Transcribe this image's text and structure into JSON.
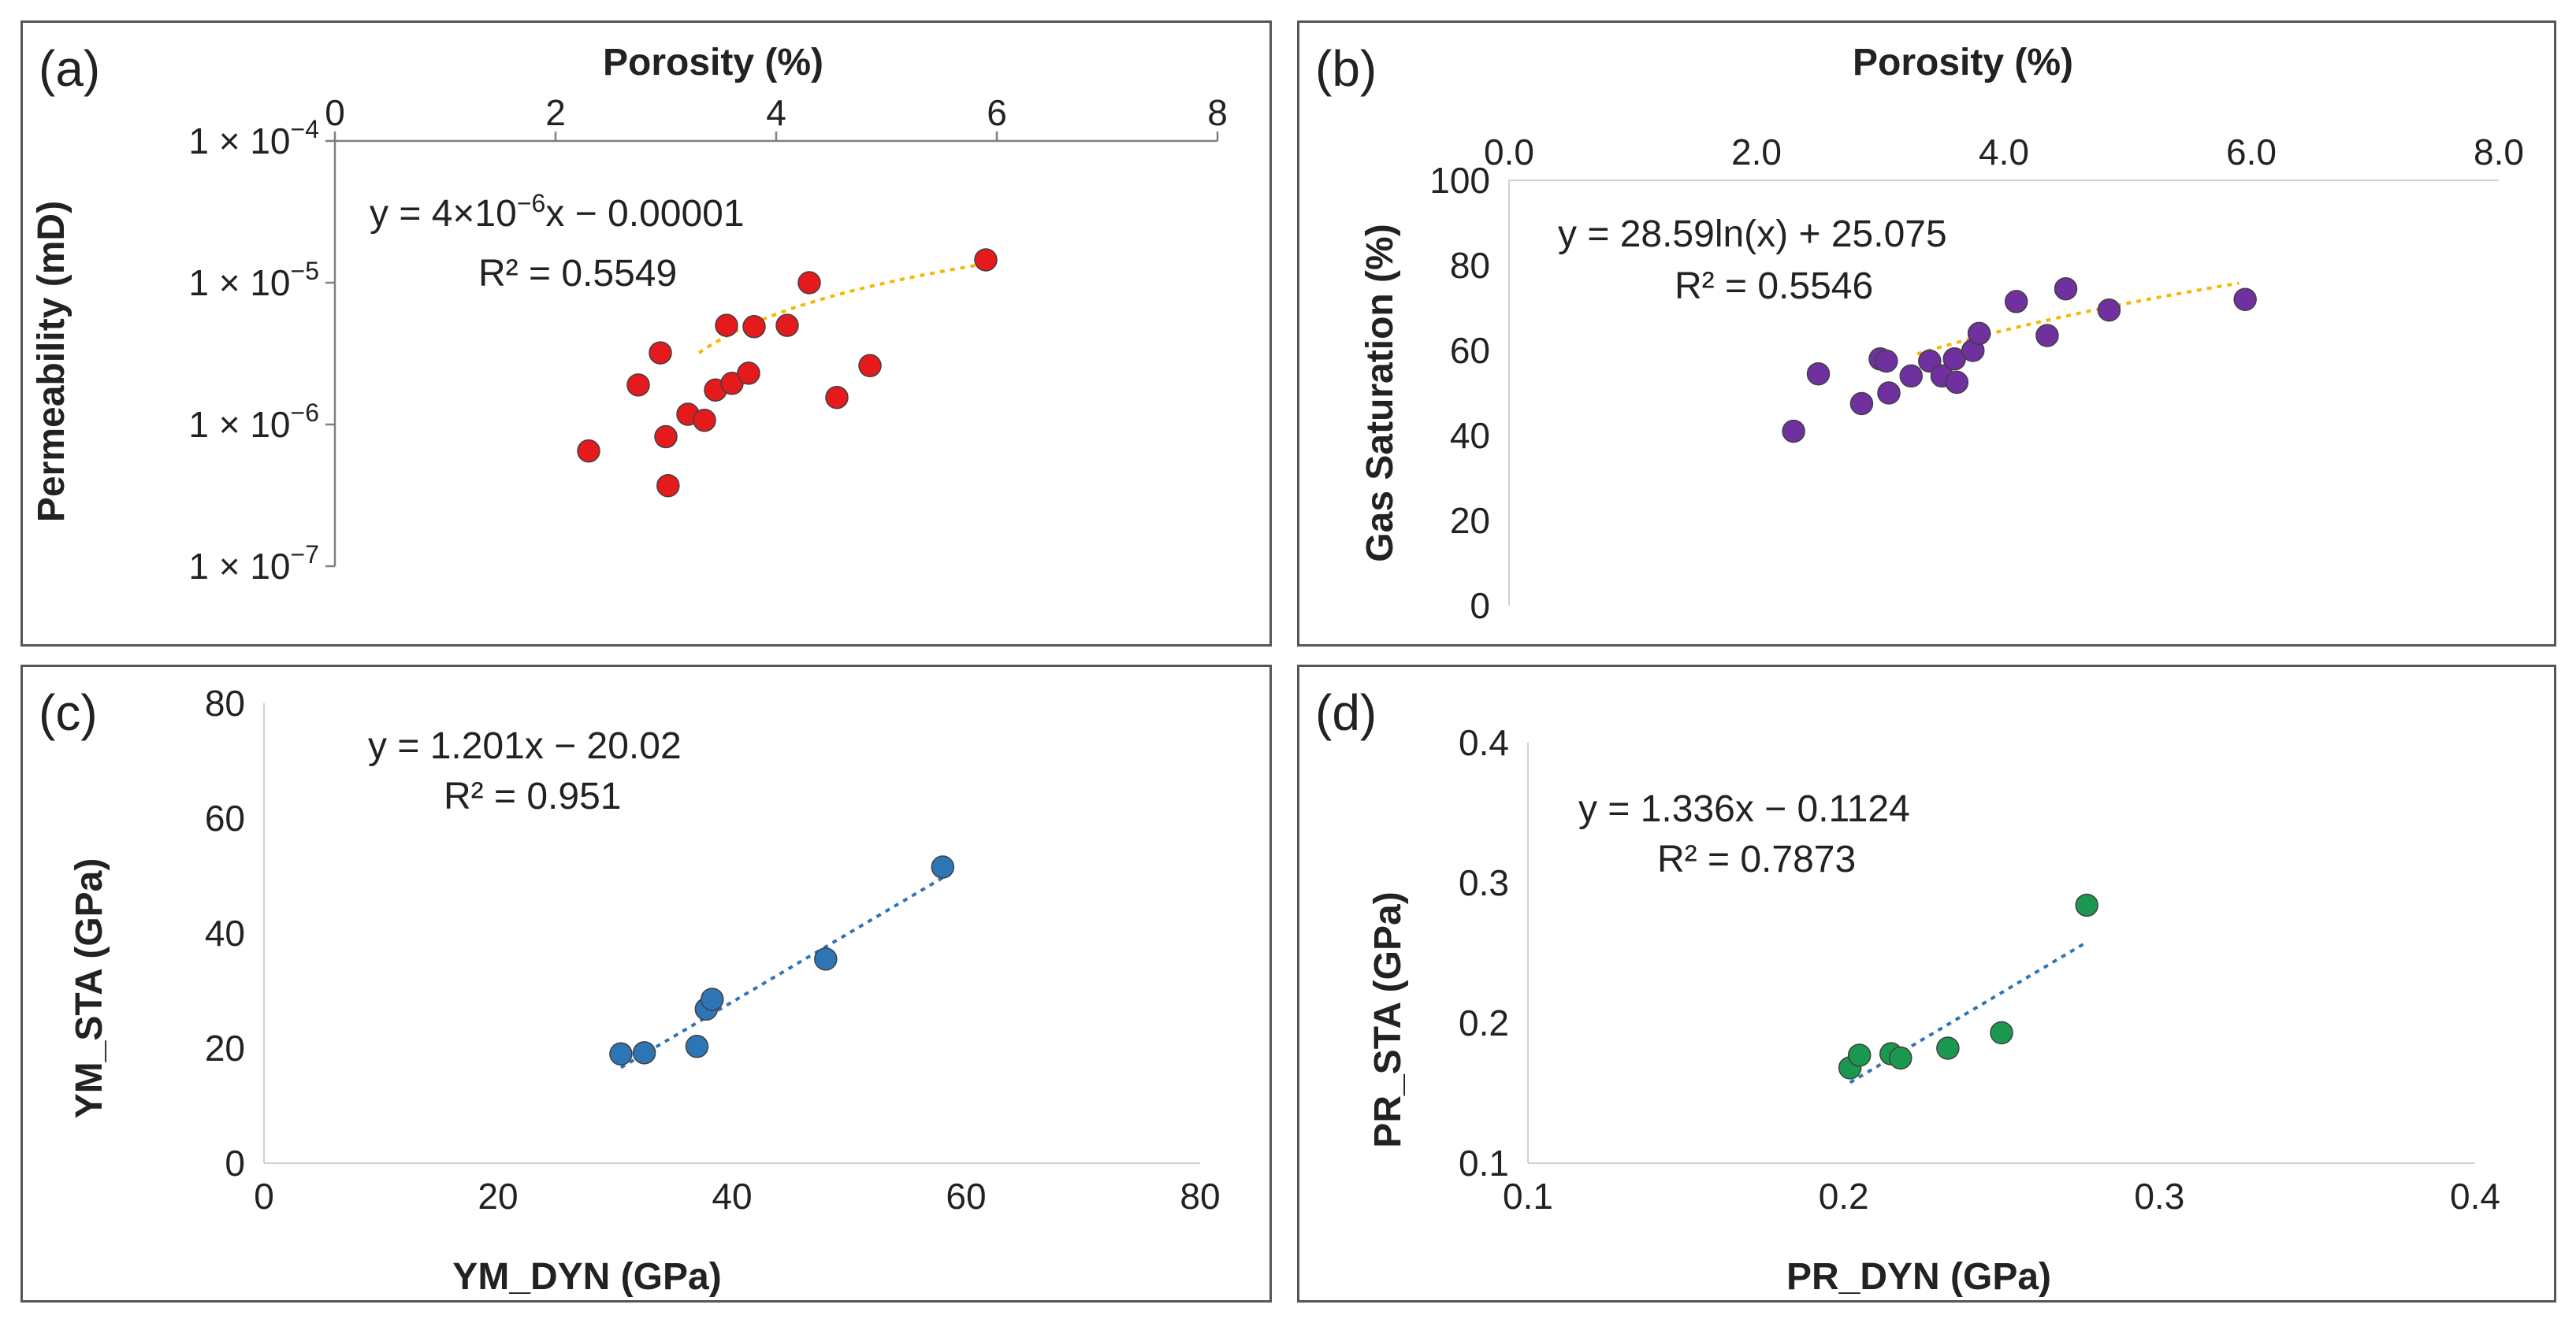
{
  "chart_data": [
    {
      "panel": "(a)",
      "type": "scatter",
      "xlabel": "Porosity (%)",
      "ylabel": "Permeability (mD)",
      "xlim": [
        0,
        8
      ],
      "xticks": [
        "0",
        "2",
        "4",
        "6",
        "8"
      ],
      "x_axis_position": "top",
      "yscale": "log",
      "ylim": [
        1e-07,
        0.0001
      ],
      "yticks": [
        {
          "value": 0.0001,
          "base": "1 × 10",
          "exp": "−4"
        },
        {
          "value": 1e-05,
          "base": "1 × 10",
          "exp": "−5"
        },
        {
          "value": 1e-06,
          "base": "1 × 10",
          "exp": "−6"
        },
        {
          "value": 1e-07,
          "base": "1 × 10",
          "exp": "−7"
        }
      ],
      "points": [
        [
          2.3,
          6.5e-07
        ],
        [
          2.75,
          1.9e-06
        ],
        [
          2.95,
          3.2e-06
        ],
        [
          3.0,
          8.2e-07
        ],
        [
          3.02,
          3.7e-07
        ],
        [
          3.2,
          1.18e-06
        ],
        [
          3.35,
          1.07e-06
        ],
        [
          3.45,
          1.75e-06
        ],
        [
          3.55,
          5e-06
        ],
        [
          3.6,
          1.95e-06
        ],
        [
          3.75,
          2.3e-06
        ],
        [
          3.8,
          4.9e-06
        ],
        [
          4.1,
          5e-06
        ],
        [
          4.3,
          1e-05
        ],
        [
          4.55,
          1.55e-06
        ],
        [
          4.85,
          2.6e-06
        ],
        [
          5.9,
          1.45e-05
        ]
      ],
      "marker_color": "#e41a1c",
      "trendline": {
        "type": "linear",
        "x_range": [
          3.3,
          5.9
        ],
        "color": "#f5b800"
      },
      "equation": {
        "prefix": "y = 4×10",
        "exp": "−6",
        "suffix": "x − 0.00001"
      },
      "r2": "R² = 0.5549"
    },
    {
      "panel": "(b)",
      "type": "scatter",
      "xlabel": "Porosity (%)",
      "ylabel": "Gas Saturation (%)",
      "xlim": [
        0,
        8
      ],
      "xticks": [
        "0.0",
        "2.0",
        "4.0",
        "6.0",
        "8.0"
      ],
      "x_axis_position": "top",
      "ylim": [
        0,
        100
      ],
      "yticks": [
        "0",
        "20",
        "40",
        "60",
        "80",
        "100"
      ],
      "points": [
        [
          2.3,
          41
        ],
        [
          2.5,
          54.5
        ],
        [
          2.85,
          47.5
        ],
        [
          3.0,
          58
        ],
        [
          3.05,
          57.5
        ],
        [
          3.07,
          50
        ],
        [
          3.25,
          54
        ],
        [
          3.4,
          57.5
        ],
        [
          3.5,
          54
        ],
        [
          3.6,
          58
        ],
        [
          3.62,
          52.5
        ],
        [
          3.75,
          60
        ],
        [
          3.8,
          64
        ],
        [
          4.1,
          71.5
        ],
        [
          4.35,
          63.5
        ],
        [
          4.5,
          74.5
        ],
        [
          4.85,
          69.5
        ],
        [
          5.95,
          72
        ]
      ],
      "marker_color": "#7030a0",
      "trendline": {
        "type": "log",
        "a": 28.59,
        "b": 25.075,
        "x_range": [
          3.3,
          5.9
        ],
        "color": "#f5b800"
      },
      "equation": "y = 28.59ln(x) + 25.075",
      "r2": "R² = 0.5546"
    },
    {
      "panel": "(c)",
      "type": "scatter",
      "xlabel": "YM_DYN (GPa)",
      "ylabel": "YM_STA (GPa)",
      "xlim": [
        0,
        80
      ],
      "xticks": [
        "0",
        "20",
        "40",
        "60",
        "80"
      ],
      "ylim": [
        0,
        80
      ],
      "yticks": [
        "0",
        "20",
        "40",
        "60",
        "80"
      ],
      "points": [
        [
          30.5,
          19
        ],
        [
          32.5,
          19.2
        ],
        [
          37,
          20.3
        ],
        [
          37.8,
          26.8
        ],
        [
          38.3,
          28.5
        ],
        [
          48,
          35.5
        ],
        [
          58,
          51.5
        ]
      ],
      "marker_color": "#2e75b6",
      "trendline": {
        "type": "linear",
        "slope": 1.201,
        "intercept": -20.02,
        "x_range": [
          30.5,
          58
        ],
        "color": "#2e75b6"
      },
      "equation": "y = 1.201x − 20.02",
      "r2": "R² = 0.951"
    },
    {
      "panel": "(d)",
      "type": "scatter",
      "xlabel": "PR_DYN (GPa)",
      "ylabel": "PR_STA (GPa)",
      "xlim": [
        0.1,
        0.4
      ],
      "xticks": [
        "0.1",
        "0.2",
        "0.3",
        "0.4"
      ],
      "ylim": [
        0.1,
        0.4
      ],
      "yticks": [
        "0.1",
        "0.2",
        "0.3",
        "0.4"
      ],
      "points": [
        [
          0.202,
          0.168
        ],
        [
          0.205,
          0.177
        ],
        [
          0.215,
          0.178
        ],
        [
          0.218,
          0.175
        ],
        [
          0.233,
          0.182
        ],
        [
          0.25,
          0.193
        ],
        [
          0.277,
          0.284
        ]
      ],
      "marker_color": "#1a9850",
      "trendline": {
        "type": "linear",
        "slope": 1.336,
        "intercept": -0.1124,
        "x_range": [
          0.202,
          0.277
        ],
        "color": "#2e75b6"
      },
      "equation": "y = 1.336x − 0.1124",
      "r2": "R² = 0.7873"
    }
  ]
}
